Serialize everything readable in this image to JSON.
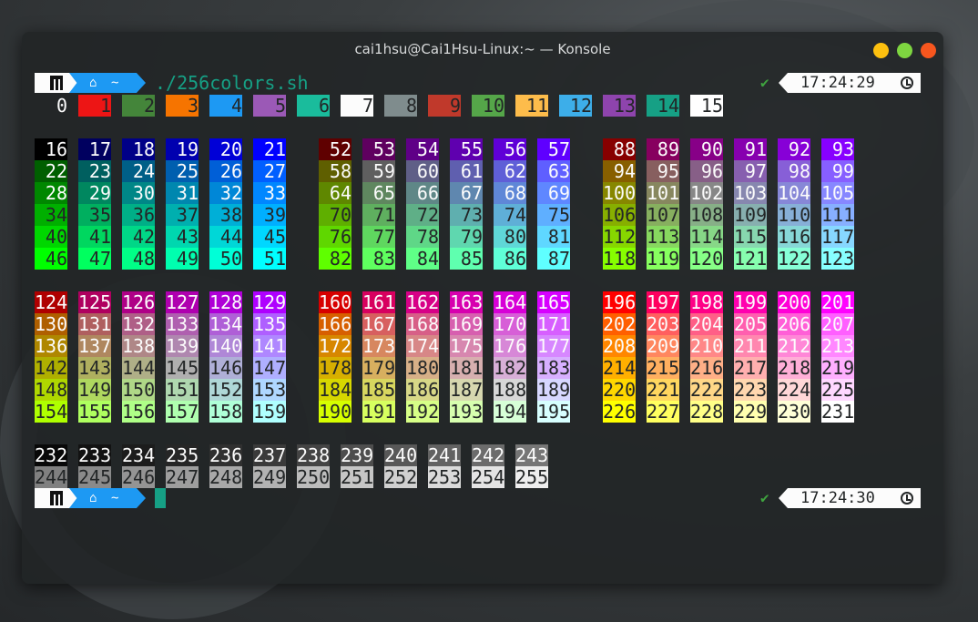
{
  "window": {
    "title": "cai1hsu@Cai1Hsu-Linux:~ — Konsole",
    "buttons": [
      {
        "name": "minimize",
        "color": "#fdc00f"
      },
      {
        "name": "maximize",
        "color": "#7ed640"
      },
      {
        "name": "close",
        "color": "#f7561e"
      }
    ]
  },
  "prompt": {
    "logo_icon": "manjaro-logo-icon",
    "home_icon": "home-icon",
    "dir": "~",
    "command": "./256colors.sh",
    "command_color": "#16a085",
    "status_icon": "check-icon",
    "time_first": "17:24:29",
    "time_second": "17:24:30",
    "clock_icon": "clock-icon"
  },
  "system_colors": {
    "labels": [
      0,
      1,
      2,
      3,
      4,
      5,
      6,
      7,
      8,
      9,
      10,
      11,
      12,
      13,
      14,
      15
    ],
    "hex": [
      "#232627",
      "#ed1515",
      "#44853a",
      "#f67400",
      "#1d99f3",
      "#9b59b6",
      "#1abc9c",
      "#fcfcfc",
      "#7f8c8d",
      "#c0392b",
      "#55a649",
      "#fdbc4b",
      "#3daee9",
      "#8e44ad",
      "#16a085",
      "#ffffff"
    ],
    "text_dark": "#232627",
    "text_light": "#fcfcfc"
  },
  "cube_blocks": [
    [
      [
        16,
        17,
        18,
        19,
        20,
        21
      ],
      [
        22,
        23,
        24,
        25,
        26,
        27
      ],
      [
        28,
        29,
        30,
        31,
        32,
        33
      ],
      [
        34,
        35,
        36,
        37,
        38,
        39
      ],
      [
        40,
        41,
        42,
        43,
        44,
        45
      ],
      [
        46,
        47,
        48,
        49,
        50,
        51
      ]
    ],
    [
      [
        52,
        53,
        54,
        55,
        56,
        57
      ],
      [
        58,
        59,
        60,
        61,
        62,
        63
      ],
      [
        64,
        65,
        66,
        67,
        68,
        69
      ],
      [
        70,
        71,
        72,
        73,
        74,
        75
      ],
      [
        76,
        77,
        78,
        79,
        80,
        81
      ],
      [
        82,
        83,
        84,
        85,
        86,
        87
      ]
    ],
    [
      [
        88,
        89,
        90,
        91,
        92,
        93
      ],
      [
        94,
        95,
        96,
        97,
        98,
        99
      ],
      [
        100,
        101,
        102,
        103,
        104,
        105
      ],
      [
        106,
        107,
        108,
        109,
        110,
        111
      ],
      [
        112,
        113,
        114,
        115,
        116,
        117
      ],
      [
        118,
        119,
        120,
        121,
        122,
        123
      ]
    ],
    [
      [
        124,
        125,
        126,
        127,
        128,
        129
      ],
      [
        130,
        131,
        132,
        133,
        134,
        135
      ],
      [
        136,
        137,
        138,
        139,
        140,
        141
      ],
      [
        142,
        143,
        144,
        145,
        146,
        147
      ],
      [
        148,
        149,
        150,
        151,
        152,
        153
      ],
      [
        154,
        155,
        156,
        157,
        158,
        159
      ]
    ],
    [
      [
        160,
        161,
        162,
        163,
        164,
        165
      ],
      [
        166,
        167,
        168,
        169,
        170,
        171
      ],
      [
        172,
        173,
        174,
        175,
        176,
        177
      ],
      [
        178,
        179,
        180,
        181,
        182,
        183
      ],
      [
        184,
        185,
        186,
        187,
        188,
        189
      ],
      [
        190,
        191,
        192,
        193,
        194,
        195
      ]
    ],
    [
      [
        196,
        197,
        198,
        199,
        200,
        201
      ],
      [
        202,
        203,
        204,
        205,
        206,
        207
      ],
      [
        208,
        209,
        210,
        211,
        212,
        213
      ],
      [
        214,
        215,
        216,
        217,
        218,
        219
      ],
      [
        220,
        221,
        222,
        223,
        224,
        225
      ],
      [
        226,
        227,
        228,
        229,
        230,
        231
      ]
    ]
  ],
  "grayscale_rows": [
    [
      232,
      233,
      234,
      235,
      236,
      237,
      238,
      239,
      240,
      241,
      242,
      243
    ],
    [
      244,
      245,
      246,
      247,
      248,
      249,
      250,
      251,
      252,
      253,
      254,
      255
    ]
  ]
}
